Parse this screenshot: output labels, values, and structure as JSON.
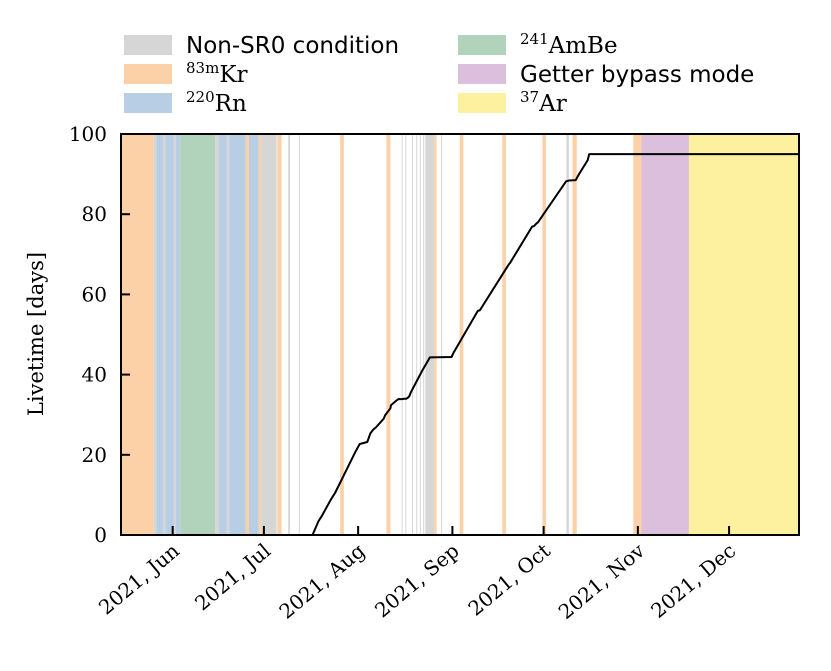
{
  "chart_data": {
    "type": "line",
    "title": "",
    "xlabel": "",
    "ylabel": "Livetime [days]",
    "ylim": [
      0,
      100
    ],
    "xlim_day_of_year": [
      135.0,
      358.0
    ],
    "y_ticks": [
      0,
      20,
      40,
      60,
      80,
      100
    ],
    "x_ticks": [
      {
        "label": "2021, Jun",
        "day": 152
      },
      {
        "label": "2021, Jul",
        "day": 182
      },
      {
        "label": "2021, Aug",
        "day": 213
      },
      {
        "label": "2021, Sep",
        "day": 244
      },
      {
        "label": "2021, Oct",
        "day": 274
      },
      {
        "label": "2021, Nov",
        "day": 305
      },
      {
        "label": "2021, Dec",
        "day": 335
      }
    ],
    "legend": {
      "position": "top",
      "entries": [
        {
          "key": "nonsr0",
          "text": "Non-SR0 condition",
          "sup": "",
          "main": "",
          "color": "#d6d6d6"
        },
        {
          "key": "ambe",
          "text": "",
          "sup": "241",
          "main": "AmBe",
          "color": "#b1d2bb"
        },
        {
          "key": "kr",
          "text": "",
          "sup": "83m",
          "main": "Kr",
          "color": "#fcd1a7"
        },
        {
          "key": "getter",
          "text": "Getter bypass mode",
          "sup": "",
          "main": "",
          "color": "#dcbfdd"
        },
        {
          "key": "rn",
          "text": "",
          "sup": "220",
          "main": "Rn",
          "color": "#b8cee5"
        },
        {
          "key": "ar",
          "text": "",
          "sup": "37",
          "main": "Ar",
          "color": "#fdf09e"
        }
      ]
    },
    "bands": [
      {
        "type": "kr",
        "start": 135.0,
        "end": 145.8
      },
      {
        "type": "nonsr0",
        "start": 145.8,
        "end": 146.6
      },
      {
        "type": "rn",
        "start": 146.6,
        "end": 148.8
      },
      {
        "type": "nonsr0",
        "start": 148.8,
        "end": 149.6
      },
      {
        "type": "rn",
        "start": 149.6,
        "end": 152.4
      },
      {
        "type": "nonsr0",
        "start": 152.4,
        "end": 153.1
      },
      {
        "type": "rn",
        "start": 153.1,
        "end": 154.5
      },
      {
        "type": "ambe",
        "start": 154.5,
        "end": 166.0
      },
      {
        "type": "nonsr0",
        "start": 166.0,
        "end": 167.2
      },
      {
        "type": "rn",
        "start": 167.2,
        "end": 169.8
      },
      {
        "type": "nonsr0",
        "start": 169.8,
        "end": 170.6
      },
      {
        "type": "rn",
        "start": 170.6,
        "end": 176.0
      },
      {
        "type": "kr",
        "start": 176.0,
        "end": 177.1
      },
      {
        "type": "rn",
        "start": 177.1,
        "end": 180.3
      },
      {
        "type": "kr",
        "start": 180.3,
        "end": 181.1
      },
      {
        "type": "nonsr0",
        "start": 181.1,
        "end": 186.2
      },
      {
        "type": "kr",
        "start": 186.4,
        "end": 187.8
      },
      {
        "type": "nonsr0",
        "start": 190.0,
        "end": 190.6
      },
      {
        "type": "nonsr0",
        "start": 193.5,
        "end": 193.8
      },
      {
        "type": "kr",
        "start": 207.1,
        "end": 208.3
      },
      {
        "type": "kr",
        "start": 222.3,
        "end": 223.6
      },
      {
        "type": "nonsr0",
        "start": 227.3,
        "end": 227.6
      },
      {
        "type": "nonsr0",
        "start": 228.5,
        "end": 228.8
      },
      {
        "type": "nonsr0",
        "start": 230.7,
        "end": 231.0
      },
      {
        "type": "nonsr0",
        "start": 232.1,
        "end": 232.4
      },
      {
        "type": "nonsr0",
        "start": 233.3,
        "end": 233.6
      },
      {
        "type": "nonsr0",
        "start": 234.4,
        "end": 234.7
      },
      {
        "type": "nonsr0",
        "start": 235.1,
        "end": 238.0
      },
      {
        "type": "kr",
        "start": 238.0,
        "end": 238.8
      },
      {
        "type": "nonsr0",
        "start": 240.3,
        "end": 240.6
      },
      {
        "type": "kr",
        "start": 246.4,
        "end": 247.6
      },
      {
        "type": "kr",
        "start": 260.4,
        "end": 261.6
      },
      {
        "type": "kr",
        "start": 273.6,
        "end": 274.8
      },
      {
        "type": "nonsr0",
        "start": 281.5,
        "end": 282.3
      },
      {
        "type": "kr",
        "start": 283.5,
        "end": 284.9
      },
      {
        "type": "kr",
        "start": 303.5,
        "end": 306.2
      },
      {
        "type": "getter",
        "start": 306.2,
        "end": 321.8
      },
      {
        "type": "ar",
        "start": 321.8,
        "end": 358.0
      }
    ],
    "series": [
      {
        "name": "Livetime",
        "color": "#000000",
        "x": [
          198.0,
          200.0,
          201.0,
          204.0,
          205.5,
          212.0,
          213.5,
          216.0,
          217.0,
          218.0,
          218.8,
          221.4,
          221.9,
          223.6,
          223.8,
          226.0,
          226.4,
          227.6,
          228.1,
          228.8,
          229.3,
          229.9,
          230.3,
          233.6,
          234.0,
          236.6,
          243.7,
          244.5,
          252.4,
          253.0,
          262.5,
          263.0,
          270.2,
          270.8,
          271.8,
          272.1,
          281.4,
          282.4,
          284.6,
          285.4,
          288.5,
          289.0,
          303.5,
          358.0
        ],
        "y": [
          0.0,
          3.5,
          4.7,
          8.8,
          10.6,
          20.6,
          22.7,
          23.2,
          25.3,
          26.3,
          26.8,
          29.0,
          29.9,
          31.6,
          32.4,
          33.8,
          33.9,
          33.9,
          34.0,
          34.0,
          34.2,
          34.7,
          35.5,
          40.3,
          40.9,
          44.3,
          44.4,
          45.6,
          55.9,
          56.0,
          67.4,
          67.9,
          76.9,
          77.0,
          77.8,
          77.9,
          88.2,
          88.4,
          88.5,
          89.7,
          93.5,
          95.0,
          95.0,
          95.0
        ]
      }
    ]
  }
}
